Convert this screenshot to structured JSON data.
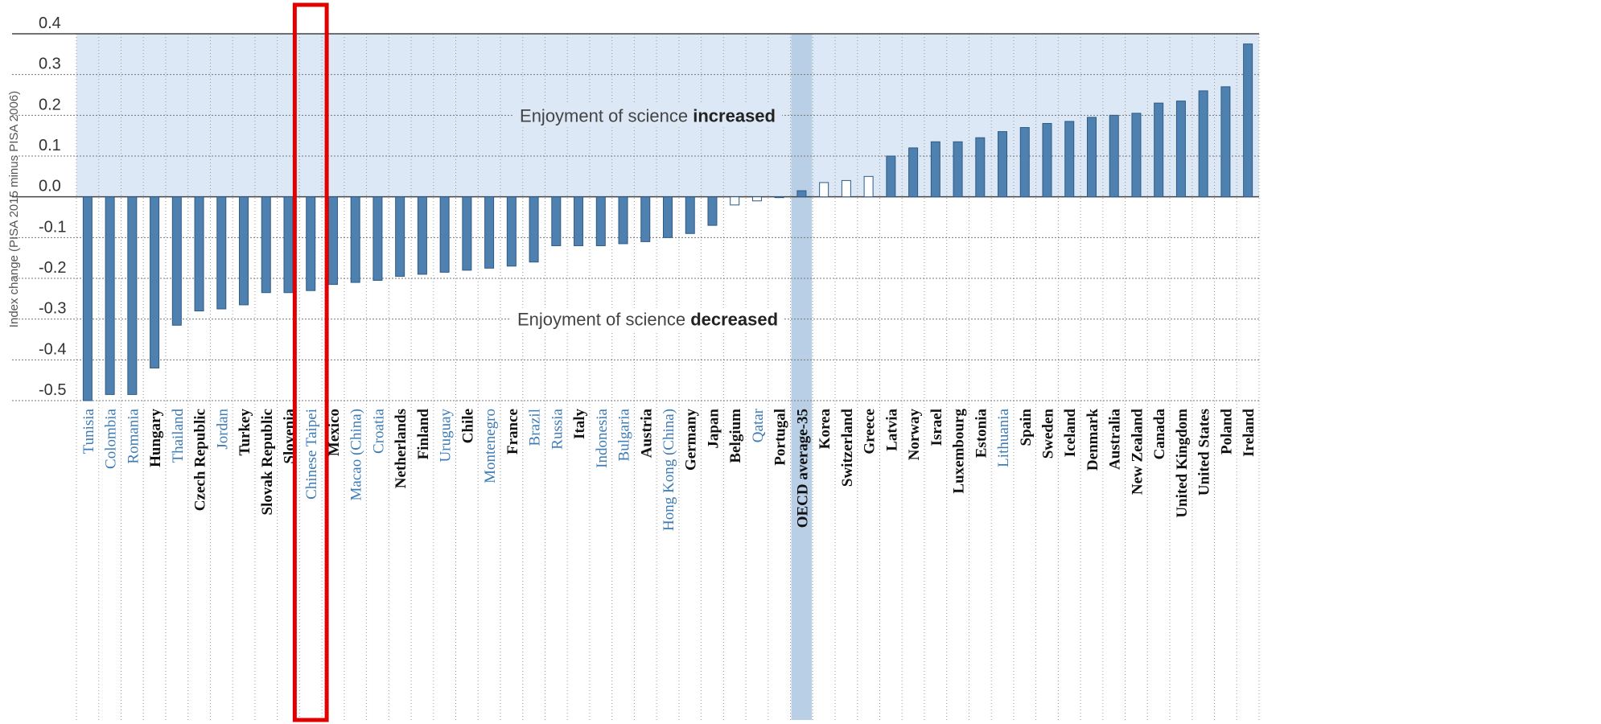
{
  "chart_data": {
    "type": "bar",
    "title": "",
    "xlabel": "",
    "ylabel": "Index change (PISA 2015 minus PISA 2006)",
    "ylim": [
      -0.5,
      0.4
    ],
    "yticks": [
      "0.4",
      "0.3",
      "0.2",
      "0.1",
      "0.0",
      "-0.1",
      "-0.2",
      "-0.3",
      "-0.4",
      "-0.5"
    ],
    "grid": true,
    "annotations": {
      "increased_prefix": "Enjoyment of science ",
      "increased_bold": "increased",
      "decreased_prefix": "Enjoyment of science ",
      "decreased_bold": "decreased"
    },
    "highlighted_category": "Chinese Taipei",
    "colors": {
      "bar_significant": "#4f81b0",
      "bar_not_significant": "#ffffff",
      "positive_region": "#dce8f5",
      "oecd_band": "#b8cfe6",
      "label_partner": "#3d7bb5",
      "label_oecd": "#111111",
      "highlight_box": "#e00000"
    },
    "categories": [
      "Tunisia",
      "Colombia",
      "Romania",
      "Hungary",
      "Thailand",
      "Czech Republic",
      "Jordan",
      "Turkey",
      "Slovak Republic",
      "Slovenia",
      "Chinese Taipei",
      "Mexico",
      "Macao (China)",
      "Croatia",
      "Netherlands",
      "Finland",
      "Uruguay",
      "Chile",
      "Montenegro",
      "France",
      "Brazil",
      "Russia",
      "Italy",
      "Indonesia",
      "Bulgaria",
      "Austria",
      "Hong Kong (China)",
      "Germany",
      "Japan",
      "Belgium",
      "Qatar",
      "Portugal",
      "OECD average-35",
      "Korea",
      "Switzerland",
      "Greece",
      "Latvia",
      "Norway",
      "Israel",
      "Luxembourg",
      "Estonia",
      "Lithuania",
      "Spain",
      "Sweden",
      "Iceland",
      "Denmark",
      "Australia",
      "New Zealand",
      "Canada",
      "United Kingdom",
      "United States",
      "Poland",
      "Ireland"
    ],
    "series": [
      {
        "values": [
          -0.5,
          -0.485,
          -0.485,
          -0.42,
          -0.315,
          -0.28,
          -0.275,
          -0.265,
          -0.235,
          -0.235,
          -0.23,
          -0.215,
          -0.21,
          -0.205,
          -0.195,
          -0.19,
          -0.185,
          -0.18,
          -0.175,
          -0.17,
          -0.16,
          -0.12,
          -0.12,
          -0.12,
          -0.115,
          -0.11,
          -0.1,
          -0.09,
          -0.07,
          -0.02,
          -0.01,
          0.0,
          0.015,
          0.035,
          0.04,
          0.05,
          0.1,
          0.12,
          0.135,
          0.135,
          0.145,
          0.16,
          0.17,
          0.18,
          0.185,
          0.195,
          0.2,
          0.205,
          0.23,
          0.235,
          0.26,
          0.27,
          0.375
        ]
      }
    ],
    "significant": [
      true,
      true,
      true,
      true,
      true,
      true,
      true,
      true,
      true,
      true,
      true,
      true,
      true,
      true,
      true,
      true,
      true,
      true,
      true,
      true,
      true,
      true,
      true,
      true,
      true,
      true,
      true,
      true,
      true,
      false,
      false,
      false,
      true,
      false,
      false,
      false,
      true,
      true,
      true,
      true,
      true,
      true,
      true,
      true,
      true,
      true,
      true,
      true,
      true,
      true,
      true,
      true,
      true
    ],
    "partner_economy": [
      true,
      true,
      true,
      false,
      true,
      false,
      true,
      false,
      false,
      false,
      true,
      false,
      true,
      true,
      false,
      false,
      true,
      false,
      true,
      false,
      true,
      true,
      false,
      true,
      true,
      false,
      true,
      false,
      false,
      false,
      true,
      false,
      false,
      false,
      false,
      false,
      false,
      false,
      false,
      false,
      false,
      true,
      false,
      false,
      false,
      false,
      false,
      false,
      false,
      false,
      false,
      false,
      false
    ]
  }
}
